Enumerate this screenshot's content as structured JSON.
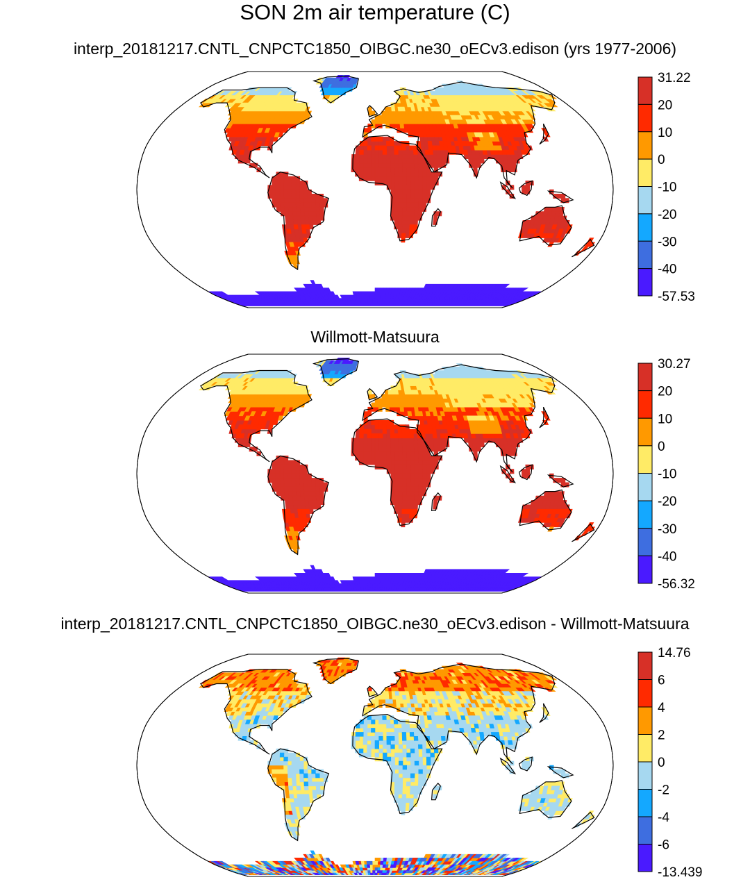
{
  "main_title": "SON 2m air temperature (C)",
  "colors": {
    "warm_bins": [
      "#d73027",
      "#ff2a00",
      "#ff9900",
      "#ffeb66"
    ],
    "cool_bins": [
      "#a6d8f0",
      "#14a8ff",
      "#3e6ee0",
      "#4a1aff"
    ],
    "coastline": "#000000",
    "ocean": "#ffffff"
  },
  "panels": [
    {
      "title": "interp_20181217.CNTL_CNPCTC1850_OIBGC.ne30_oECv3.edison (yrs 1977-2006)",
      "colorbar_labels": [
        "31.22",
        "20",
        "10",
        "0",
        "-10",
        "-20",
        "-30",
        "-40",
        "-57.53"
      ],
      "map_style": "absolute"
    },
    {
      "title": "Willmott-Matsuura",
      "colorbar_labels": [
        "30.27",
        "20",
        "10",
        "0",
        "-10",
        "-20",
        "-30",
        "-40",
        "-56.32"
      ],
      "map_style": "absolute"
    },
    {
      "title": "interp_20181217.CNTL_CNPCTC1850_OIBGC.ne30_oECv3.edison - Willmott-Matsuura",
      "colorbar_labels": [
        "14.76",
        "6",
        "4",
        "2",
        "0",
        "-2",
        "-4",
        "-6",
        "-13.439"
      ],
      "map_style": "difference"
    }
  ]
}
